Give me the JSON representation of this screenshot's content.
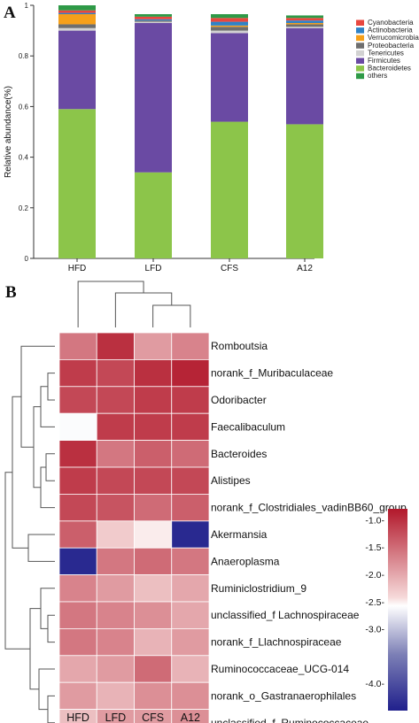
{
  "panel_a_label": "A",
  "panel_b_label": "B",
  "colors": {
    "Cyanobacteria": "#e8473f",
    "Actinobacteria": "#2f82c7",
    "Verrucomicrobia": "#f6a01a",
    "Proteobacteria": "#6e6e6e",
    "Tenericutes": "#d2d2d2",
    "Firmicutes": "#6a4aa3",
    "Bacteroidetes": "#8cc54a",
    "others": "#2e9a47"
  },
  "chart_data": [
    {
      "type": "bar",
      "stacked": true,
      "ylabel": "Relative abundance(%)",
      "ylim": [
        0,
        1
      ],
      "yticks": [
        "0",
        "0.2",
        "0.4",
        "0.6",
        "0.8",
        "1"
      ],
      "categories": [
        "HFD",
        "LFD",
        "CFS",
        "A12"
      ],
      "legend_position": "top-right",
      "series": [
        {
          "name": "Bacteroidetes",
          "values": [
            0.59,
            0.34,
            0.54,
            0.53
          ]
        },
        {
          "name": "Firmicutes",
          "values": [
            0.31,
            0.59,
            0.35,
            0.38
          ]
        },
        {
          "name": "Tenericutes",
          "values": [
            0.01,
            0.005,
            0.01,
            0.005
          ]
        },
        {
          "name": "Proteobacteria",
          "values": [
            0.015,
            0.005,
            0.015,
            0.01
          ]
        },
        {
          "name": "Verrucomicrobia",
          "values": [
            0.04,
            0.0,
            0.005,
            0.005
          ]
        },
        {
          "name": "Actinobacteria",
          "values": [
            0.005,
            0.005,
            0.015,
            0.01
          ]
        },
        {
          "name": "Cyanobacteria",
          "values": [
            0.01,
            0.01,
            0.015,
            0.01
          ]
        },
        {
          "name": "others",
          "values": [
            0.02,
            0.01,
            0.015,
            0.01
          ]
        }
      ]
    },
    {
      "type": "heatmap",
      "columns": [
        "HFD",
        "LFD",
        "CFS",
        "A12"
      ],
      "rows": [
        "Romboutsia",
        "norank_f_Muribaculaceae",
        "Odoribacter",
        "Faecalibaculum",
        "Bacteroides",
        "Alistipes",
        "norank_f_Clostridiales_vadinBB60_group",
        "Akermansia",
        "Anaeroplasma",
        "Ruminiclostridium_9",
        "unclassified_f Lachnospiraceae",
        "norank_f_Llachnospiraceae",
        "Ruminococcaceae_UCG-014",
        "norank_o_Gastranaerophilales",
        "unclassified_f_Ruminococcaceae"
      ],
      "values": [
        [
          -1.6,
          -1.0,
          -1.9,
          -1.7
        ],
        [
          -1.1,
          -1.2,
          -1.0,
          -0.9
        ],
        [
          -1.2,
          -1.2,
          -1.1,
          -1.1
        ],
        [
          -2.6,
          -1.1,
          -1.1,
          -1.1
        ],
        [
          -1.0,
          -1.6,
          -1.4,
          -1.5
        ],
        [
          -1.1,
          -1.2,
          -1.2,
          -1.2
        ],
        [
          -1.2,
          -1.3,
          -1.5,
          -1.4
        ],
        [
          -1.4,
          -2.3,
          -2.5,
          -4.4
        ],
        [
          -4.4,
          -1.6,
          -1.5,
          -1.6
        ],
        [
          -1.7,
          -1.9,
          -2.2,
          -2.0
        ],
        [
          -1.6,
          -1.7,
          -1.8,
          -2.0
        ],
        [
          -1.6,
          -1.7,
          -2.1,
          -1.9
        ],
        [
          -2.0,
          -1.9,
          -1.5,
          -2.1
        ],
        [
          -1.9,
          -2.1,
          -1.8,
          -1.8
        ],
        [
          -2.2,
          -1.9,
          -1.9,
          -1.8
        ]
      ],
      "colorbar_ticks": [
        "-1.0-",
        "-1.5-",
        "-2.0-",
        "-2.5-",
        "-3.0-",
        "-4.0-"
      ],
      "colorbar_range": [
        -4.5,
        -0.8
      ]
    }
  ]
}
